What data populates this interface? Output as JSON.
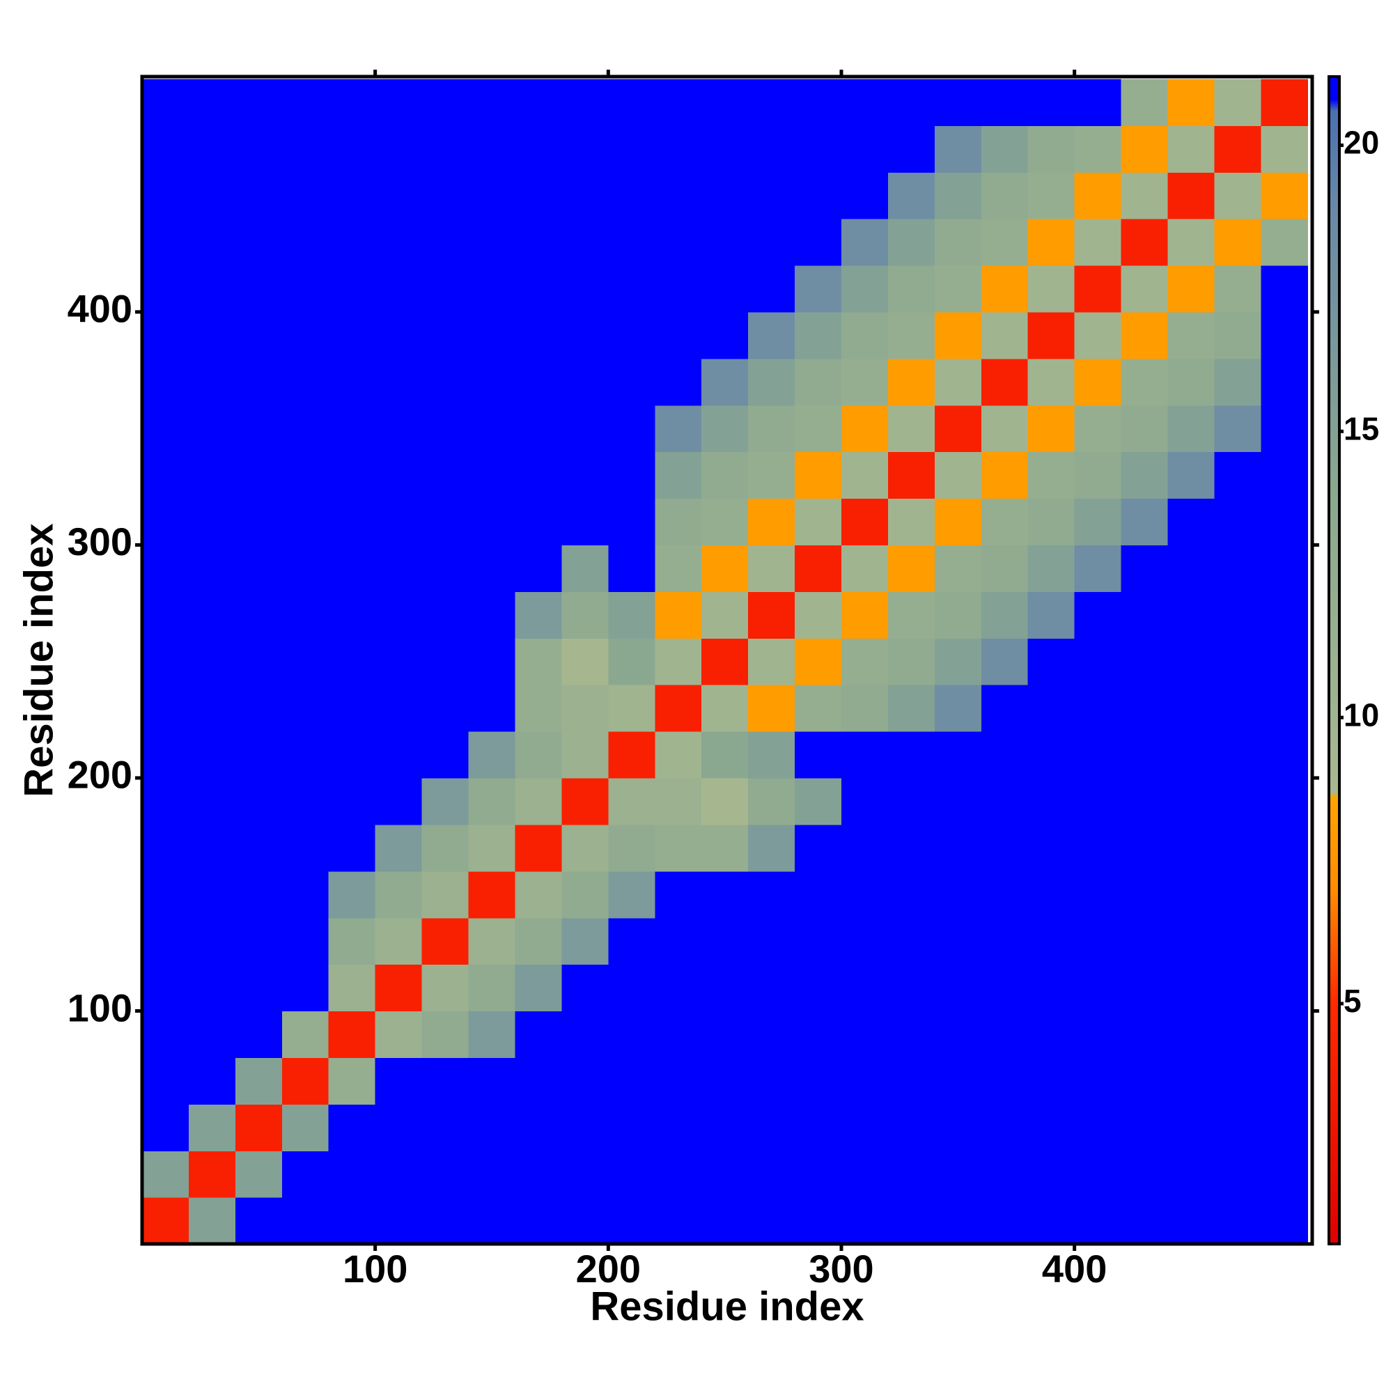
{
  "chart_data": {
    "type": "heatmap",
    "x_label": "Residue index",
    "y_label": "Residue index",
    "xbins": [
      0,
      20,
      40,
      60,
      80,
      100,
      120,
      140,
      160,
      180,
      200,
      220,
      240,
      260,
      280,
      300,
      320,
      340,
      360,
      380,
      400,
      420,
      440,
      460,
      480,
      500
    ],
    "ybins": [
      0,
      20,
      40,
      60,
      80,
      100,
      120,
      140,
      160,
      180,
      200,
      220,
      240,
      260,
      280,
      300,
      320,
      340,
      360,
      380,
      400,
      420,
      440,
      460,
      480,
      500
    ],
    "values": [
      [
        4,
        15,
        21,
        21,
        21,
        21,
        21,
        21,
        21,
        21,
        21,
        21,
        21,
        21,
        21,
        21,
        21,
        21,
        21,
        21,
        21,
        21,
        21,
        21,
        21
      ],
      [
        15,
        4,
        15,
        21,
        21,
        21,
        21,
        21,
        21,
        21,
        21,
        21,
        21,
        21,
        21,
        21,
        21,
        21,
        21,
        21,
        21,
        21,
        21,
        21,
        21
      ],
      [
        21,
        15,
        4,
        15,
        21,
        21,
        21,
        21,
        21,
        21,
        21,
        21,
        21,
        21,
        21,
        21,
        21,
        21,
        21,
        21,
        21,
        21,
        21,
        21,
        21
      ],
      [
        21,
        21,
        15,
        4,
        12,
        21,
        21,
        21,
        21,
        21,
        21,
        21,
        21,
        21,
        21,
        21,
        21,
        21,
        21,
        21,
        21,
        21,
        21,
        21,
        21
      ],
      [
        21,
        21,
        21,
        12,
        4,
        11,
        13,
        16,
        21,
        21,
        21,
        21,
        21,
        21,
        21,
        21,
        21,
        21,
        21,
        21,
        21,
        21,
        21,
        21,
        21
      ],
      [
        21,
        21,
        21,
        21,
        11,
        4,
        11,
        13,
        16,
        21,
        21,
        21,
        21,
        21,
        21,
        21,
        21,
        21,
        21,
        21,
        21,
        21,
        21,
        21,
        21
      ],
      [
        21,
        21,
        21,
        21,
        13,
        11,
        4,
        11,
        13,
        16,
        21,
        21,
        21,
        21,
        21,
        21,
        21,
        21,
        21,
        21,
        21,
        21,
        21,
        21,
        21
      ],
      [
        21,
        21,
        21,
        21,
        16,
        13,
        11,
        4,
        11,
        13,
        16,
        21,
        21,
        21,
        21,
        21,
        21,
        21,
        21,
        21,
        21,
        21,
        21,
        21,
        21
      ],
      [
        21,
        21,
        21,
        21,
        21,
        16,
        13,
        11,
        4,
        11,
        13,
        12,
        12,
        16,
        21,
        21,
        21,
        21,
        21,
        21,
        21,
        21,
        21,
        21,
        21
      ],
      [
        21,
        21,
        21,
        21,
        21,
        21,
        16,
        13,
        11,
        4,
        11,
        11,
        9,
        13,
        15,
        21,
        21,
        21,
        21,
        21,
        21,
        21,
        21,
        21,
        21
      ],
      [
        21,
        21,
        21,
        21,
        21,
        21,
        21,
        16,
        13,
        11,
        4,
        10,
        14,
        15,
        21,
        21,
        21,
        21,
        21,
        21,
        21,
        21,
        21,
        21,
        21
      ],
      [
        21,
        21,
        21,
        21,
        21,
        21,
        21,
        21,
        12,
        11,
        10,
        4,
        10,
        8,
        12,
        13,
        15,
        18,
        21,
        21,
        21,
        21,
        21,
        21,
        21
      ],
      [
        21,
        21,
        21,
        21,
        21,
        21,
        21,
        21,
        12,
        9,
        14,
        10,
        4,
        10,
        8,
        12,
        13,
        15,
        18,
        21,
        21,
        21,
        21,
        21,
        21
      ],
      [
        21,
        21,
        21,
        21,
        21,
        21,
        21,
        21,
        16,
        13,
        15,
        8,
        10,
        4,
        10,
        8,
        12,
        13,
        15,
        18,
        21,
        21,
        21,
        21,
        21
      ],
      [
        21,
        21,
        21,
        21,
        21,
        21,
        21,
        21,
        21,
        15,
        21,
        12,
        8,
        10,
        4,
        10,
        8,
        12,
        13,
        15,
        18,
        21,
        21,
        21,
        21
      ],
      [
        21,
        21,
        21,
        21,
        21,
        21,
        21,
        21,
        21,
        21,
        21,
        13,
        12,
        8,
        10,
        4,
        10,
        8,
        12,
        13,
        15,
        18,
        21,
        21,
        21
      ],
      [
        21,
        21,
        21,
        21,
        21,
        21,
        21,
        21,
        21,
        21,
        21,
        15,
        13,
        12,
        8,
        10,
        4,
        10,
        8,
        12,
        13,
        15,
        18,
        21,
        21
      ],
      [
        21,
        21,
        21,
        21,
        21,
        21,
        21,
        21,
        21,
        21,
        21,
        18,
        15,
        13,
        12,
        8,
        10,
        4,
        10,
        8,
        12,
        13,
        15,
        18,
        21
      ],
      [
        21,
        21,
        21,
        21,
        21,
        21,
        21,
        21,
        21,
        21,
        21,
        21,
        18,
        15,
        13,
        12,
        8,
        10,
        4,
        10,
        8,
        12,
        13,
        15,
        21
      ],
      [
        21,
        21,
        21,
        21,
        21,
        21,
        21,
        21,
        21,
        21,
        21,
        21,
        21,
        18,
        15,
        13,
        12,
        8,
        10,
        4,
        10,
        8,
        12,
        13,
        21
      ],
      [
        21,
        21,
        21,
        21,
        21,
        21,
        21,
        21,
        21,
        21,
        21,
        21,
        21,
        21,
        18,
        15,
        13,
        12,
        8,
        10,
        4,
        10,
        8,
        12,
        21
      ],
      [
        21,
        21,
        21,
        21,
        21,
        21,
        21,
        21,
        21,
        21,
        21,
        21,
        21,
        21,
        21,
        18,
        15,
        13,
        12,
        8,
        10,
        4,
        10,
        8,
        12
      ],
      [
        21,
        21,
        21,
        21,
        21,
        21,
        21,
        21,
        21,
        21,
        21,
        21,
        21,
        21,
        21,
        21,
        18,
        15,
        13,
        12,
        8,
        10,
        4,
        10,
        8
      ],
      [
        21,
        21,
        21,
        21,
        21,
        21,
        21,
        21,
        21,
        21,
        21,
        21,
        21,
        21,
        21,
        21,
        21,
        18,
        15,
        13,
        12,
        8,
        10,
        4,
        10
      ],
      [
        21,
        21,
        21,
        21,
        21,
        21,
        21,
        21,
        21,
        21,
        21,
        21,
        21,
        21,
        21,
        21,
        21,
        21,
        21,
        21,
        21,
        12,
        8,
        10,
        4
      ]
    ],
    "xlim": [
      0,
      502
    ],
    "ylim": [
      0,
      501
    ],
    "xticks": [
      100,
      200,
      300,
      400
    ],
    "yticks": [
      100,
      200,
      300,
      400
    ],
    "clim": [
      0.8,
      21.2
    ],
    "cticks": [
      5,
      10,
      15,
      20
    ],
    "colorscale": [
      [
        0.8,
        "#e00000"
      ],
      [
        5,
        "#ff2a00"
      ],
      [
        7,
        "#ff8c00"
      ],
      [
        8.6,
        "#ffa500"
      ],
      [
        8.7,
        "#a8b890"
      ],
      [
        14,
        "#8aa890"
      ],
      [
        19,
        "#6888a8"
      ],
      [
        20.6,
        "#4a70b0"
      ],
      [
        20.8,
        "#0000ff"
      ],
      [
        21.2,
        "#0000ff"
      ]
    ]
  }
}
